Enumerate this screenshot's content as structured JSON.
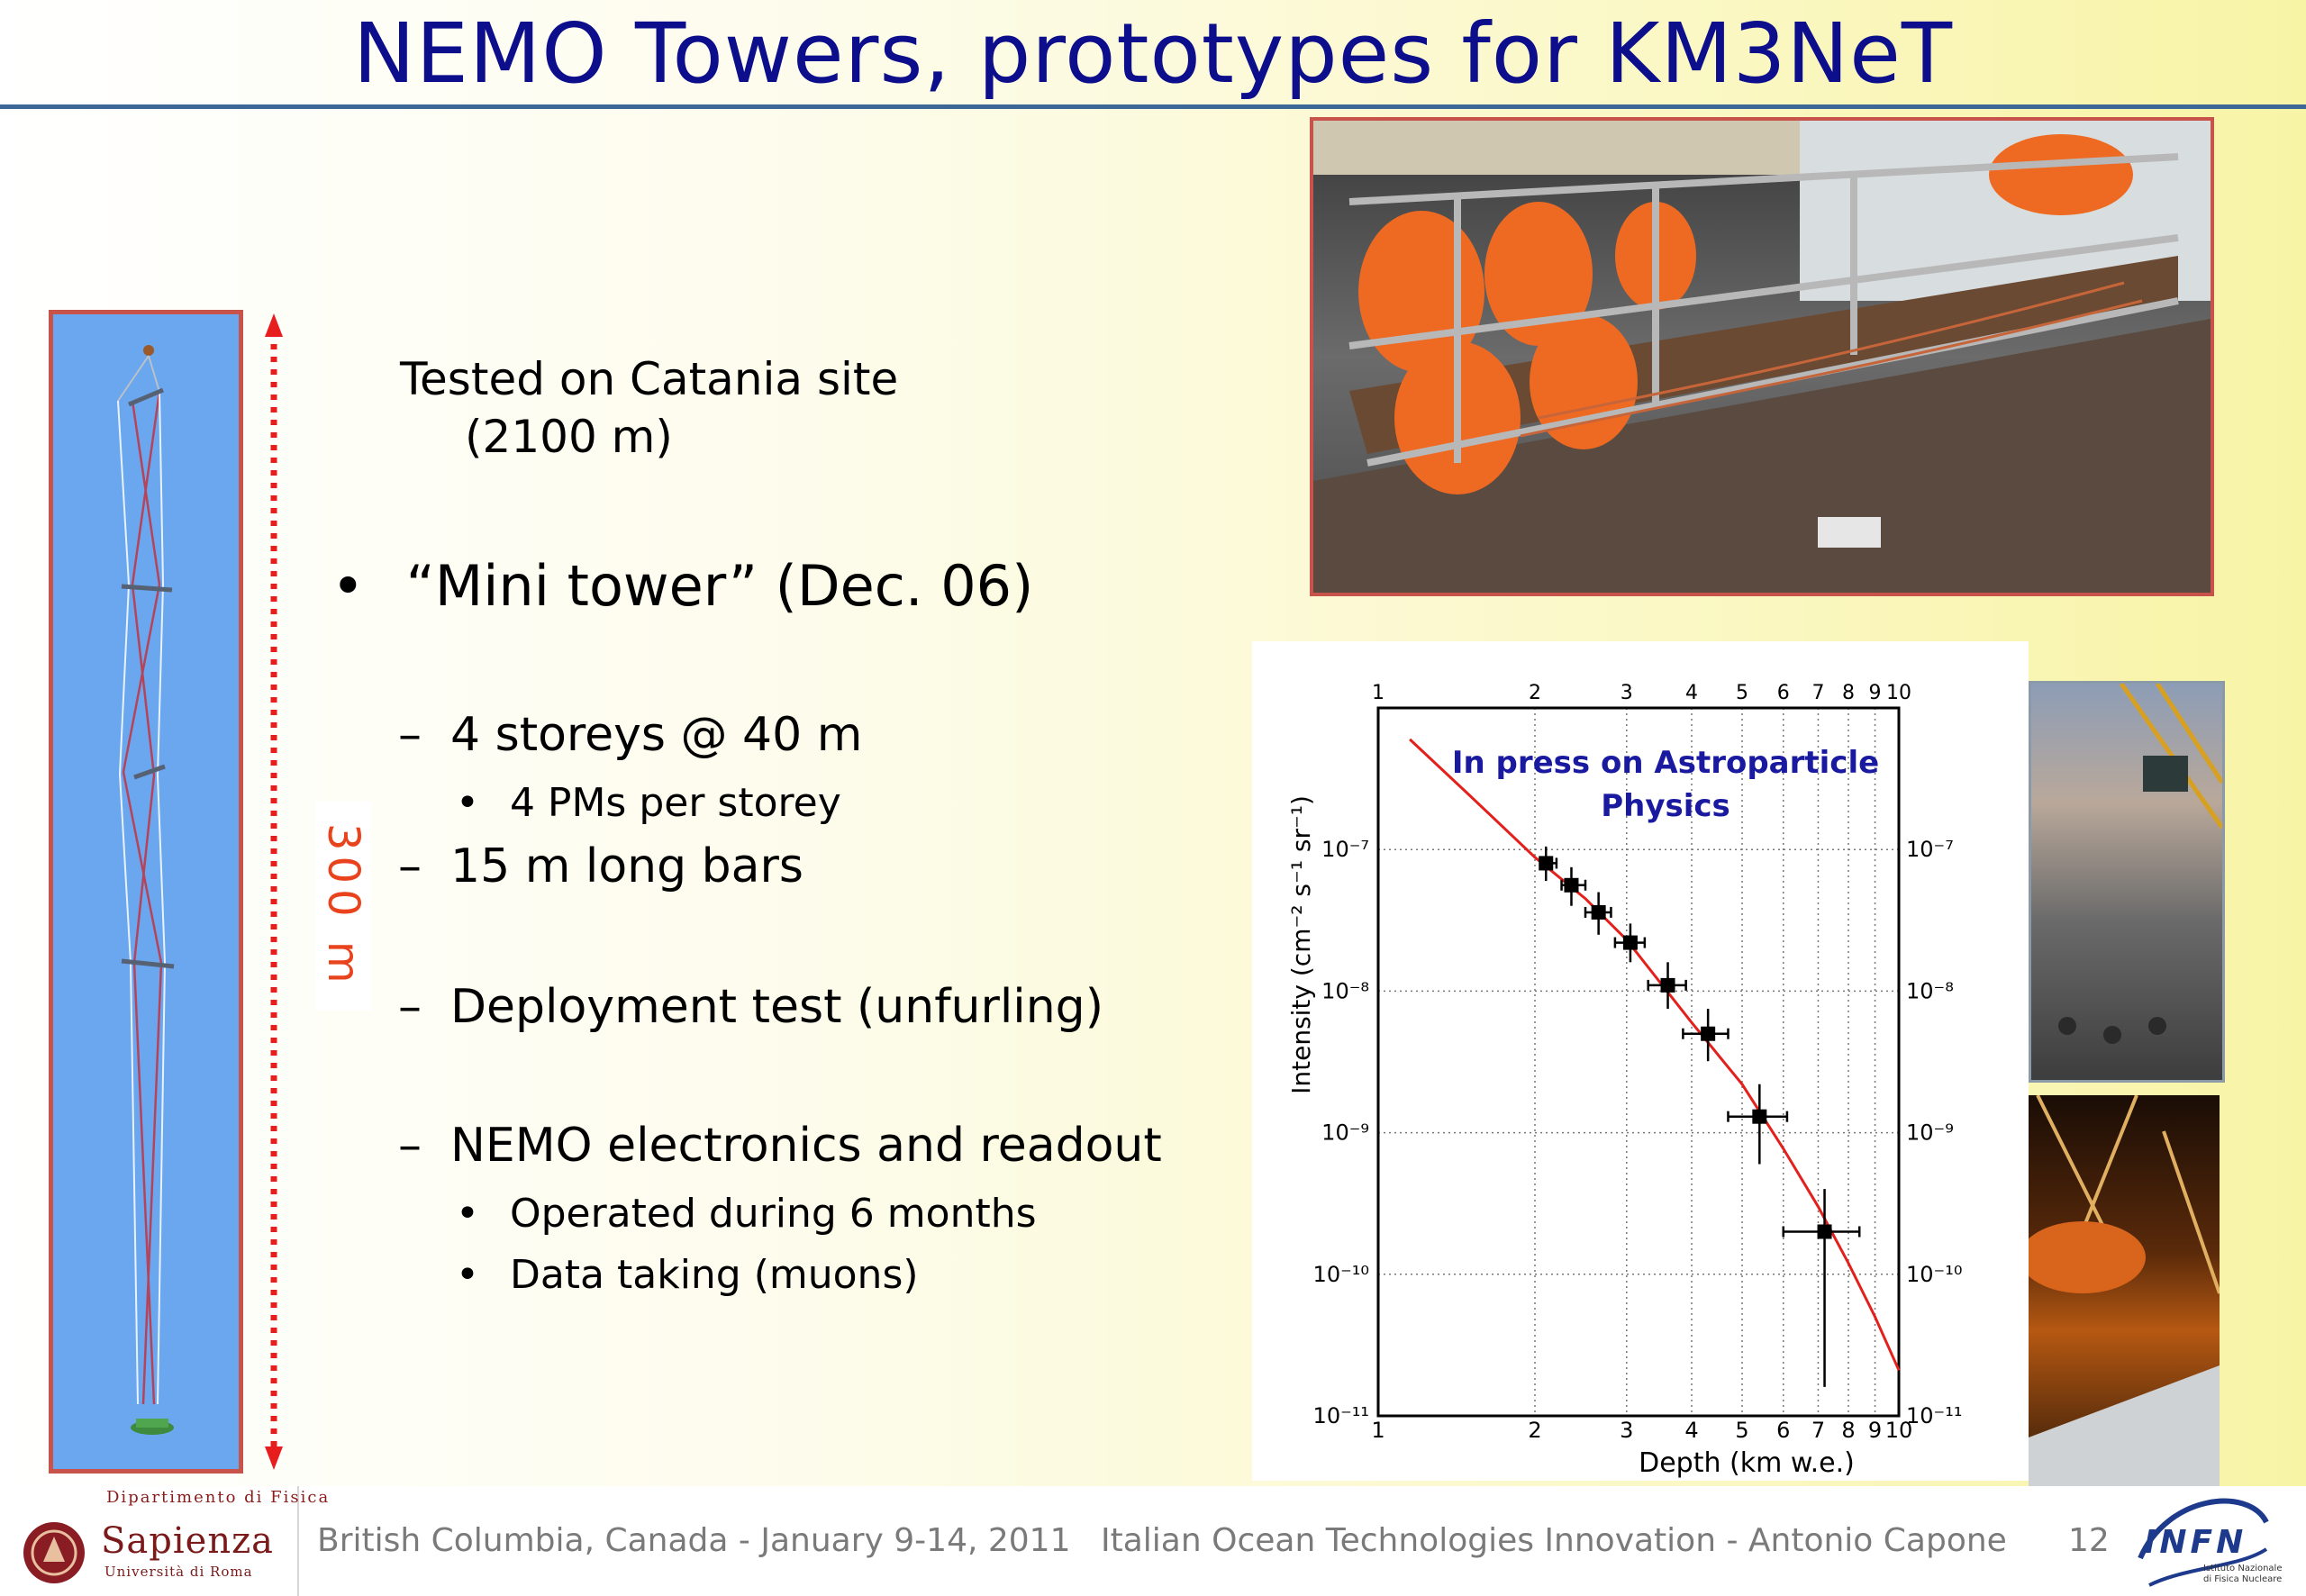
{
  "slide": {
    "title": "NEMO Towers, prototypes for KM3NeT",
    "tower_height_label": "300 m",
    "catania_line1": "Tested on Catania site",
    "catania_line2": "(2100 m)",
    "bullet_main": "“Mini tower”  (Dec. 06)",
    "bullet_marker": "•",
    "dash_marker": "–",
    "items": [
      {
        "level": 2,
        "text": "4 storeys @ 40 m"
      },
      {
        "level": 3,
        "text": "4 PMs per storey"
      },
      {
        "level": 2,
        "text": "15 m long bars"
      },
      {
        "level": 2,
        "text": "Deployment test (unfurling)"
      },
      {
        "level": 2,
        "text": "NEMO electronics and readout"
      },
      {
        "level": 3,
        "text": "Operated during 6 months"
      },
      {
        "level": 3,
        "text": "Data taking (muons)"
      }
    ]
  },
  "plot": {
    "annotation_line1": "In press on Astroparticle",
    "annotation_line2": "Physics",
    "xlabel": "Depth (km w.e.)",
    "ylabel": "Intensity (cm⁻² s⁻¹ sr⁻¹)",
    "curve_color": "#e3201b"
  },
  "chart_data": {
    "type": "scatter",
    "title": "",
    "xlabel": "Depth (km w.e.)",
    "ylabel": "Intensity (cm⁻² s⁻¹ sr⁻¹)",
    "x_scale": "log",
    "y_scale": "log",
    "xlim": [
      1,
      10
    ],
    "ylim": [
      1e-11,
      1e-06
    ],
    "x_ticks": [
      "1",
      "2",
      "3",
      "4",
      "5",
      "6",
      "7",
      "8",
      "9",
      "10"
    ],
    "y_ticks_left": [
      "10⁻¹¹",
      "10⁻¹⁰",
      "10⁻⁹",
      "10⁻⁸",
      "10⁻⁷"
    ],
    "y_ticks_right": [
      "10⁻¹¹",
      "10⁻¹⁰",
      "10⁻⁹",
      "10⁻⁸",
      "10⁻⁷"
    ],
    "grid": true,
    "series": [
      {
        "points": [
          {
            "x": 2.1,
            "y": 8e-08,
            "xerr_lo": 2.05,
            "xerr_hi": 2.2,
            "yerr_lo": 6e-08,
            "yerr_hi": 1.05e-07
          },
          {
            "x": 2.35,
            "y": 5.6e-08,
            "xerr_lo": 2.25,
            "xerr_hi": 2.5,
            "yerr_lo": 4e-08,
            "yerr_hi": 7.5e-08
          },
          {
            "x": 2.65,
            "y": 3.6e-08,
            "xerr_lo": 2.5,
            "xerr_hi": 2.8,
            "yerr_lo": 2.5e-08,
            "yerr_hi": 5e-08
          },
          {
            "x": 3.05,
            "y": 2.2e-08,
            "xerr_lo": 2.85,
            "xerr_hi": 3.25,
            "yerr_lo": 1.6e-08,
            "yerr_hi": 3e-08
          },
          {
            "x": 3.6,
            "y": 1.1e-08,
            "xerr_lo": 3.3,
            "xerr_hi": 3.9,
            "yerr_lo": 7.5e-09,
            "yerr_hi": 1.6e-08
          },
          {
            "x": 4.3,
            "y": 5e-09,
            "xerr_lo": 3.85,
            "xerr_hi": 4.7,
            "yerr_lo": 3.2e-09,
            "yerr_hi": 7.5e-09
          },
          {
            "x": 5.4,
            "y": 1.3e-09,
            "xerr_lo": 4.7,
            "xerr_hi": 6.1,
            "yerr_lo": 6e-10,
            "yerr_hi": 2.2e-09
          },
          {
            "x": 7.2,
            "y": 2e-10,
            "xerr_lo": 6.0,
            "xerr_hi": 8.4,
            "yerr_lo": 1.6e-11,
            "yerr_hi": 4e-10
          }
        ]
      }
    ],
    "curve": {
      "x": [
        1.15,
        1.5,
        2.0,
        2.5,
        3.0,
        4.0,
        5.0,
        6.0,
        7.0,
        8.0,
        9.0,
        10.0
      ],
      "y": [
        6e-07,
        2.4e-07,
        8.8e-08,
        4.5e-08,
        2.3e-08,
        6e-09,
        2.2e-09,
        7.7e-10,
        3e-10,
        1.2e-10,
        5e-11,
        2.1e-11
      ]
    }
  },
  "footer": {
    "dept": "Dipartimento di Fisica",
    "sapienza": "Sapienza",
    "sapienza_sub": "Università di Roma",
    "event": "British Columbia, Canada   -  January 9-14, 2011",
    "talk": "Italian Ocean Technologies Innovation   -  Antonio Capone",
    "page": "12",
    "infn": "INFN",
    "infn_sub1": "Istituto Nazionale",
    "infn_sub2": "di Fisica Nucleare"
  }
}
